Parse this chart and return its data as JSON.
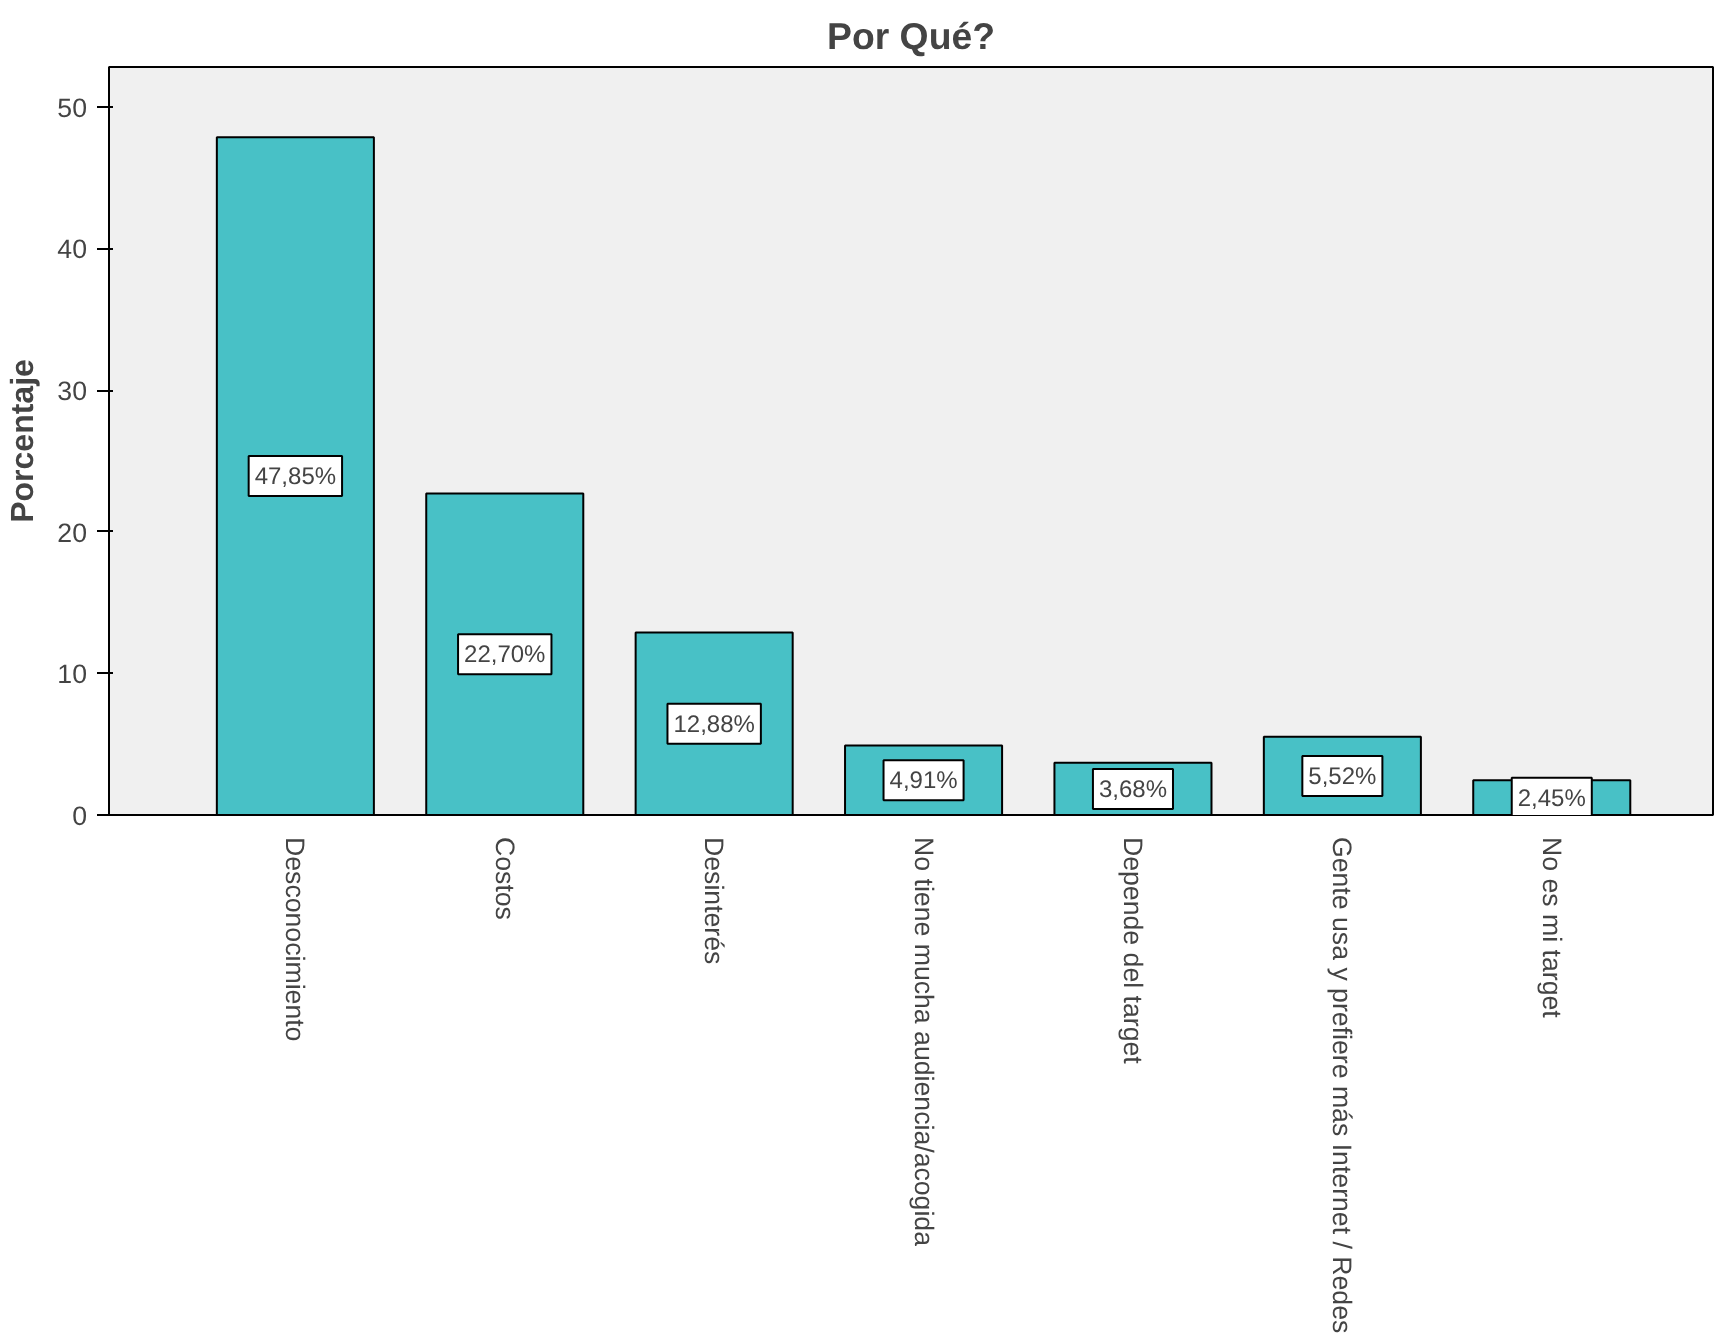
{
  "chart_data": {
    "type": "bar",
    "title": "Por Qué?",
    "ylabel": "Porcentaje",
    "categories": [
      "Desconocimiento",
      "Costos",
      "Desinterés",
      "No tiene mucha audiencia/acogida",
      "Depende del target",
      "Gente usa y prefiere más Internet / Redes",
      "No es mi target"
    ],
    "values": [
      47.85,
      22.7,
      12.88,
      4.91,
      3.68,
      5.52,
      2.45
    ],
    "value_labels": [
      "47,85%",
      "22,70%",
      "12,88%",
      "4,91%",
      "3,68%",
      "5,52%",
      "2,45%"
    ],
    "color": "#48c1c6",
    "ylim": [
      0,
      52.8
    ],
    "yticks": [
      0,
      10,
      20,
      30,
      40,
      50
    ],
    "grid": false
  }
}
